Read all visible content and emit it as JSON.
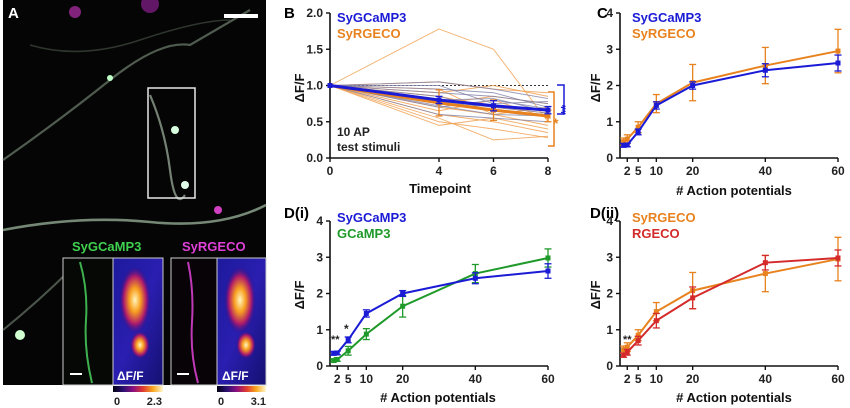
{
  "panel_labels": {
    "a": "A",
    "b": "B",
    "c": "C",
    "d1": "D(i)",
    "d2": "D(ii)"
  },
  "colors": {
    "sygcamp3": "#1b1bd6",
    "syrgeco": "#e8821e",
    "gcamp3": "#1f9a2a",
    "rgeco": "#d42a2a",
    "individual_green": "#8080a8",
    "individual_red": "#f0a050"
  },
  "micrograph": {
    "channel_green": "SyGCaMP3",
    "channel_magenta": "SyRGECO",
    "inset_label_green": "ΔF/F",
    "inset_label_magenta": "ΔF/F",
    "colorbar_green": {
      "min": "0",
      "max": "2.3"
    },
    "colorbar_magenta": {
      "min": "0",
      "max": "3.1"
    }
  },
  "chart_data": [
    {
      "id": "B",
      "type": "line",
      "title": "",
      "xlabel": "Timepoint",
      "ylabel": "ΔF/F",
      "xlim": [
        0,
        8
      ],
      "ylim": [
        0,
        2.0
      ],
      "xticks": [
        "0",
        "4",
        "6",
        "8"
      ],
      "yticks": [
        "0.0",
        "0.5",
        "1.0",
        "1.5",
        "2.0"
      ],
      "x": [
        0,
        4,
        6,
        8
      ],
      "series": [
        {
          "name": "SyGCaMP3",
          "values": [
            1.0,
            0.8,
            0.72,
            0.66
          ],
          "err": [
            0,
            0.05,
            0.07,
            0.05
          ]
        },
        {
          "name": "SyRGECO",
          "values": [
            1.0,
            0.76,
            0.66,
            0.58
          ],
          "err": [
            0,
            0.18,
            0.14,
            0.08
          ]
        }
      ],
      "individual_syrgeco": [
        [
          1.0,
          1.78,
          1.5,
          0.5
        ],
        [
          1.0,
          0.9,
          1.0,
          0.85
        ],
        [
          1.0,
          0.6,
          0.5,
          0.35
        ],
        [
          1.0,
          0.7,
          0.6,
          0.45
        ],
        [
          1.0,
          0.5,
          0.4,
          0.28
        ],
        [
          1.0,
          1.05,
          0.95,
          0.9
        ],
        [
          1.0,
          0.65,
          0.8,
          0.55
        ],
        [
          1.0,
          0.85,
          0.7,
          0.62
        ],
        [
          1.0,
          0.45,
          0.55,
          0.4
        ],
        [
          1.0,
          0.55,
          0.25,
          0.3
        ],
        [
          1.0,
          0.95,
          0.6,
          0.7
        ],
        [
          1.0,
          0.75,
          0.85,
          0.75
        ]
      ],
      "individual_sygcamp3": [
        [
          1.0,
          1.05,
          0.95,
          0.82
        ],
        [
          1.0,
          0.9,
          0.85,
          0.75
        ],
        [
          1.0,
          0.78,
          0.7,
          0.62
        ],
        [
          1.0,
          0.72,
          0.6,
          0.58
        ],
        [
          1.0,
          0.95,
          0.9,
          0.7
        ],
        [
          1.0,
          0.85,
          0.65,
          0.6
        ],
        [
          1.0,
          0.7,
          0.8,
          0.68
        ],
        [
          1.0,
          0.6,
          0.55,
          0.5
        ],
        [
          1.0,
          1.0,
          0.75,
          0.78
        ],
        [
          1.0,
          0.8,
          0.82,
          0.64
        ]
      ],
      "reference_line": 1.0,
      "annotations": {
        "orange_sig": "*",
        "blue_sig": "**",
        "note_line1": "10 AP",
        "note_line2": "test stimuli"
      },
      "legend": [
        "SyGCaMP3",
        "SyRGECO"
      ]
    },
    {
      "id": "C",
      "type": "line",
      "xlabel": "# Action potentials",
      "ylabel": "ΔF/F",
      "xlim": [
        0,
        60
      ],
      "ylim": [
        0,
        4
      ],
      "xticks": [
        "2",
        "5",
        "10",
        "20",
        "40",
        "60"
      ],
      "yticks": [
        "0",
        "1",
        "2",
        "3",
        "4"
      ],
      "x": [
        1,
        2,
        5,
        10,
        20,
        40,
        60
      ],
      "series": [
        {
          "name": "SyGCaMP3",
          "values": [
            0.35,
            0.36,
            0.72,
            1.45,
            2.0,
            2.42,
            2.62
          ],
          "err": [
            0.05,
            0.05,
            0.08,
            0.1,
            0.1,
            0.18,
            0.22
          ]
        },
        {
          "name": "SyRGECO",
          "values": [
            0.45,
            0.52,
            0.85,
            1.5,
            2.08,
            2.55,
            2.95
          ],
          "err": [
            0.1,
            0.12,
            0.15,
            0.25,
            0.5,
            0.5,
            0.6
          ]
        }
      ],
      "legend": [
        "SyGCaMP3",
        "SyRGECO"
      ]
    },
    {
      "id": "D(i)",
      "type": "line",
      "xlabel": "# Action potentials",
      "ylabel": "ΔF/F",
      "xlim": [
        0,
        60
      ],
      "ylim": [
        0,
        4
      ],
      "xticks": [
        "2",
        "5",
        "10",
        "20",
        "40",
        "60"
      ],
      "yticks": [
        "0",
        "1",
        "2",
        "3",
        "4"
      ],
      "x": [
        1,
        2,
        5,
        10,
        20,
        40,
        60
      ],
      "series": [
        {
          "name": "SyGCaMP3",
          "values": [
            0.35,
            0.36,
            0.72,
            1.45,
            2.0,
            2.42,
            2.62
          ],
          "err": [
            0.05,
            0.05,
            0.08,
            0.1,
            0.08,
            0.15,
            0.2
          ]
        },
        {
          "name": "GCaMP3",
          "values": [
            0.15,
            0.18,
            0.42,
            0.88,
            1.65,
            2.55,
            2.98
          ],
          "err": [
            0.04,
            0.05,
            0.12,
            0.15,
            0.3,
            0.25,
            0.25
          ]
        }
      ],
      "annotations": {
        "sig_2": "**",
        "sig_5": "*"
      },
      "legend": [
        "SyGCaMP3",
        "GCaMP3"
      ]
    },
    {
      "id": "D(ii)",
      "type": "line",
      "xlabel": "# Action potentials",
      "ylabel": "ΔF/F",
      "xlim": [
        0,
        60
      ],
      "ylim": [
        0,
        4
      ],
      "xticks": [
        "2",
        "5",
        "10",
        "20",
        "40",
        "60"
      ],
      "yticks": [
        "0",
        "1",
        "2",
        "3",
        "4"
      ],
      "x": [
        1,
        2,
        5,
        10,
        20,
        40,
        60
      ],
      "series": [
        {
          "name": "SyRGECO",
          "values": [
            0.45,
            0.52,
            0.85,
            1.5,
            2.08,
            2.55,
            2.95
          ],
          "err": [
            0.1,
            0.12,
            0.15,
            0.25,
            0.5,
            0.5,
            0.6
          ]
        },
        {
          "name": "RGECO",
          "values": [
            0.3,
            0.38,
            0.7,
            1.25,
            1.88,
            2.85,
            2.98
          ],
          "err": [
            0.06,
            0.08,
            0.12,
            0.2,
            0.3,
            0.2,
            0.22
          ]
        }
      ],
      "annotations": {
        "sig_2": "**"
      },
      "legend": [
        "SyRGECO",
        "RGECO"
      ]
    }
  ]
}
